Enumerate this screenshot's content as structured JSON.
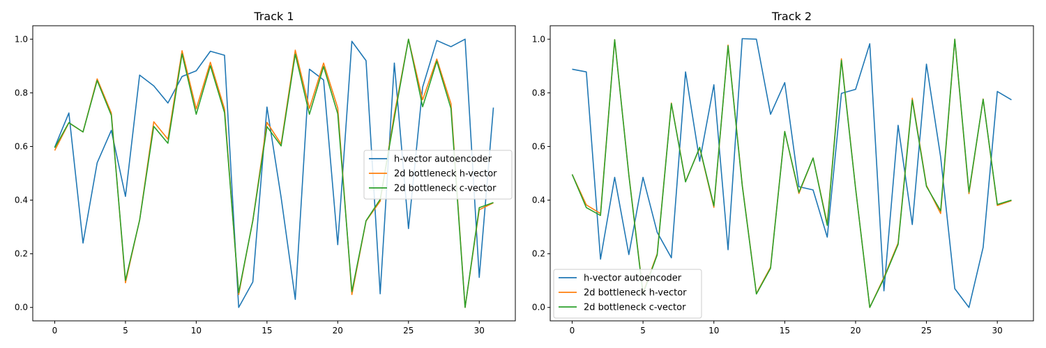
{
  "chart_data": [
    {
      "type": "line",
      "title": "Track 1",
      "xlabel": "",
      "ylabel": "",
      "xlim": [
        -1.55,
        32.55
      ],
      "ylim": [
        -0.05,
        1.05
      ],
      "xticks": [
        0,
        5,
        10,
        15,
        20,
        25,
        30
      ],
      "yticks": [
        0.0,
        0.2,
        0.4,
        0.6,
        0.8,
        1.0
      ],
      "xtick_labels": [
        "0",
        "5",
        "10",
        "15",
        "20",
        "25",
        "30"
      ],
      "ytick_labels": [
        "0.0",
        "0.2",
        "0.4",
        "0.6",
        "0.8",
        "1.0"
      ],
      "grid": false,
      "legend_position": "center-right",
      "x": [
        0,
        1,
        2,
        3,
        4,
        5,
        6,
        7,
        8,
        9,
        10,
        11,
        12,
        13,
        14,
        15,
        16,
        17,
        18,
        19,
        20,
        21,
        22,
        23,
        24,
        25,
        26,
        27,
        28,
        29,
        30,
        31
      ],
      "series": [
        {
          "name": "h-vector autoencoder",
          "color": "#1f77b4",
          "values": [
            0.597,
            0.725,
            0.24,
            0.539,
            0.66,
            0.414,
            0.866,
            0.826,
            0.762,
            0.861,
            0.882,
            0.955,
            0.94,
            0.0,
            0.095,
            0.747,
            0.41,
            0.03,
            0.888,
            0.848,
            0.234,
            0.992,
            0.92,
            0.051,
            0.911,
            0.294,
            0.821,
            0.995,
            0.972,
            1.0,
            0.112,
            0.745
          ]
        },
        {
          "name": "2d bottleneck h-vector",
          "color": "#ff7f0e",
          "values": [
            0.585,
            0.688,
            0.654,
            0.852,
            0.725,
            0.092,
            0.326,
            0.692,
            0.627,
            0.957,
            0.74,
            0.914,
            0.74,
            0.048,
            0.325,
            0.69,
            0.609,
            0.959,
            0.742,
            0.911,
            0.744,
            0.048,
            0.322,
            0.396,
            0.72,
            1.0,
            0.774,
            0.926,
            0.76,
            0.0,
            0.364,
            0.39
          ]
        },
        {
          "name": "2d bottleneck c-vector",
          "color": "#2ca02c",
          "values": [
            0.595,
            0.689,
            0.654,
            0.846,
            0.716,
            0.101,
            0.325,
            0.675,
            0.612,
            0.945,
            0.72,
            0.901,
            0.726,
            0.055,
            0.323,
            0.674,
            0.602,
            0.944,
            0.72,
            0.898,
            0.722,
            0.059,
            0.323,
            0.403,
            0.706,
            1.0,
            0.748,
            0.918,
            0.742,
            0.0,
            0.372,
            0.391
          ]
        }
      ]
    },
    {
      "type": "line",
      "title": "Track 2",
      "xlabel": "",
      "ylabel": "",
      "xlim": [
        -1.55,
        32.55
      ],
      "ylim": [
        -0.05,
        1.05
      ],
      "xticks": [
        0,
        5,
        10,
        15,
        20,
        25,
        30
      ],
      "yticks": [
        0.0,
        0.2,
        0.4,
        0.6,
        0.8,
        1.0
      ],
      "xtick_labels": [
        "0",
        "5",
        "10",
        "15",
        "20",
        "25",
        "30"
      ],
      "ytick_labels": [
        "0.0",
        "0.2",
        "0.4",
        "0.6",
        "0.8",
        "1.0"
      ],
      "grid": false,
      "legend_position": "lower-left",
      "x": [
        0,
        1,
        2,
        3,
        4,
        5,
        6,
        7,
        8,
        9,
        10,
        11,
        12,
        13,
        14,
        15,
        16,
        17,
        18,
        19,
        20,
        21,
        22,
        23,
        24,
        25,
        26,
        27,
        28,
        29,
        30,
        31
      ],
      "series": [
        {
          "name": "h-vector autoencoder",
          "color": "#1f77b4",
          "values": [
            0.888,
            0.878,
            0.18,
            0.485,
            0.197,
            0.485,
            0.28,
            0.185,
            0.878,
            0.545,
            0.83,
            0.215,
            1.002,
            1.0,
            0.72,
            0.838,
            0.45,
            0.438,
            0.262,
            0.798,
            0.813,
            0.983,
            0.062,
            0.679,
            0.309,
            0.907,
            0.561,
            0.07,
            0.0,
            0.224,
            0.805,
            0.774
          ]
        },
        {
          "name": "2d bottleneck h-vector",
          "color": "#ff7f0e",
          "values": [
            0.496,
            0.382,
            0.35,
            0.998,
            0.495,
            0.055,
            0.2,
            0.762,
            0.47,
            0.595,
            0.373,
            0.978,
            0.458,
            0.052,
            0.15,
            0.656,
            0.425,
            0.557,
            0.312,
            0.927,
            0.444,
            0.0,
            0.112,
            0.24,
            0.78,
            0.455,
            0.35,
            1.0,
            0.424,
            0.777,
            0.38,
            0.398
          ]
        },
        {
          "name": "2d bottleneck c-vector",
          "color": "#2ca02c",
          "values": [
            0.496,
            0.372,
            0.343,
            0.998,
            0.493,
            0.05,
            0.196,
            0.76,
            0.468,
            0.597,
            0.379,
            0.975,
            0.455,
            0.05,
            0.146,
            0.656,
            0.429,
            0.557,
            0.306,
            0.921,
            0.443,
            0.0,
            0.108,
            0.235,
            0.773,
            0.451,
            0.36,
            1.0,
            0.43,
            0.776,
            0.384,
            0.4
          ]
        }
      ]
    }
  ]
}
